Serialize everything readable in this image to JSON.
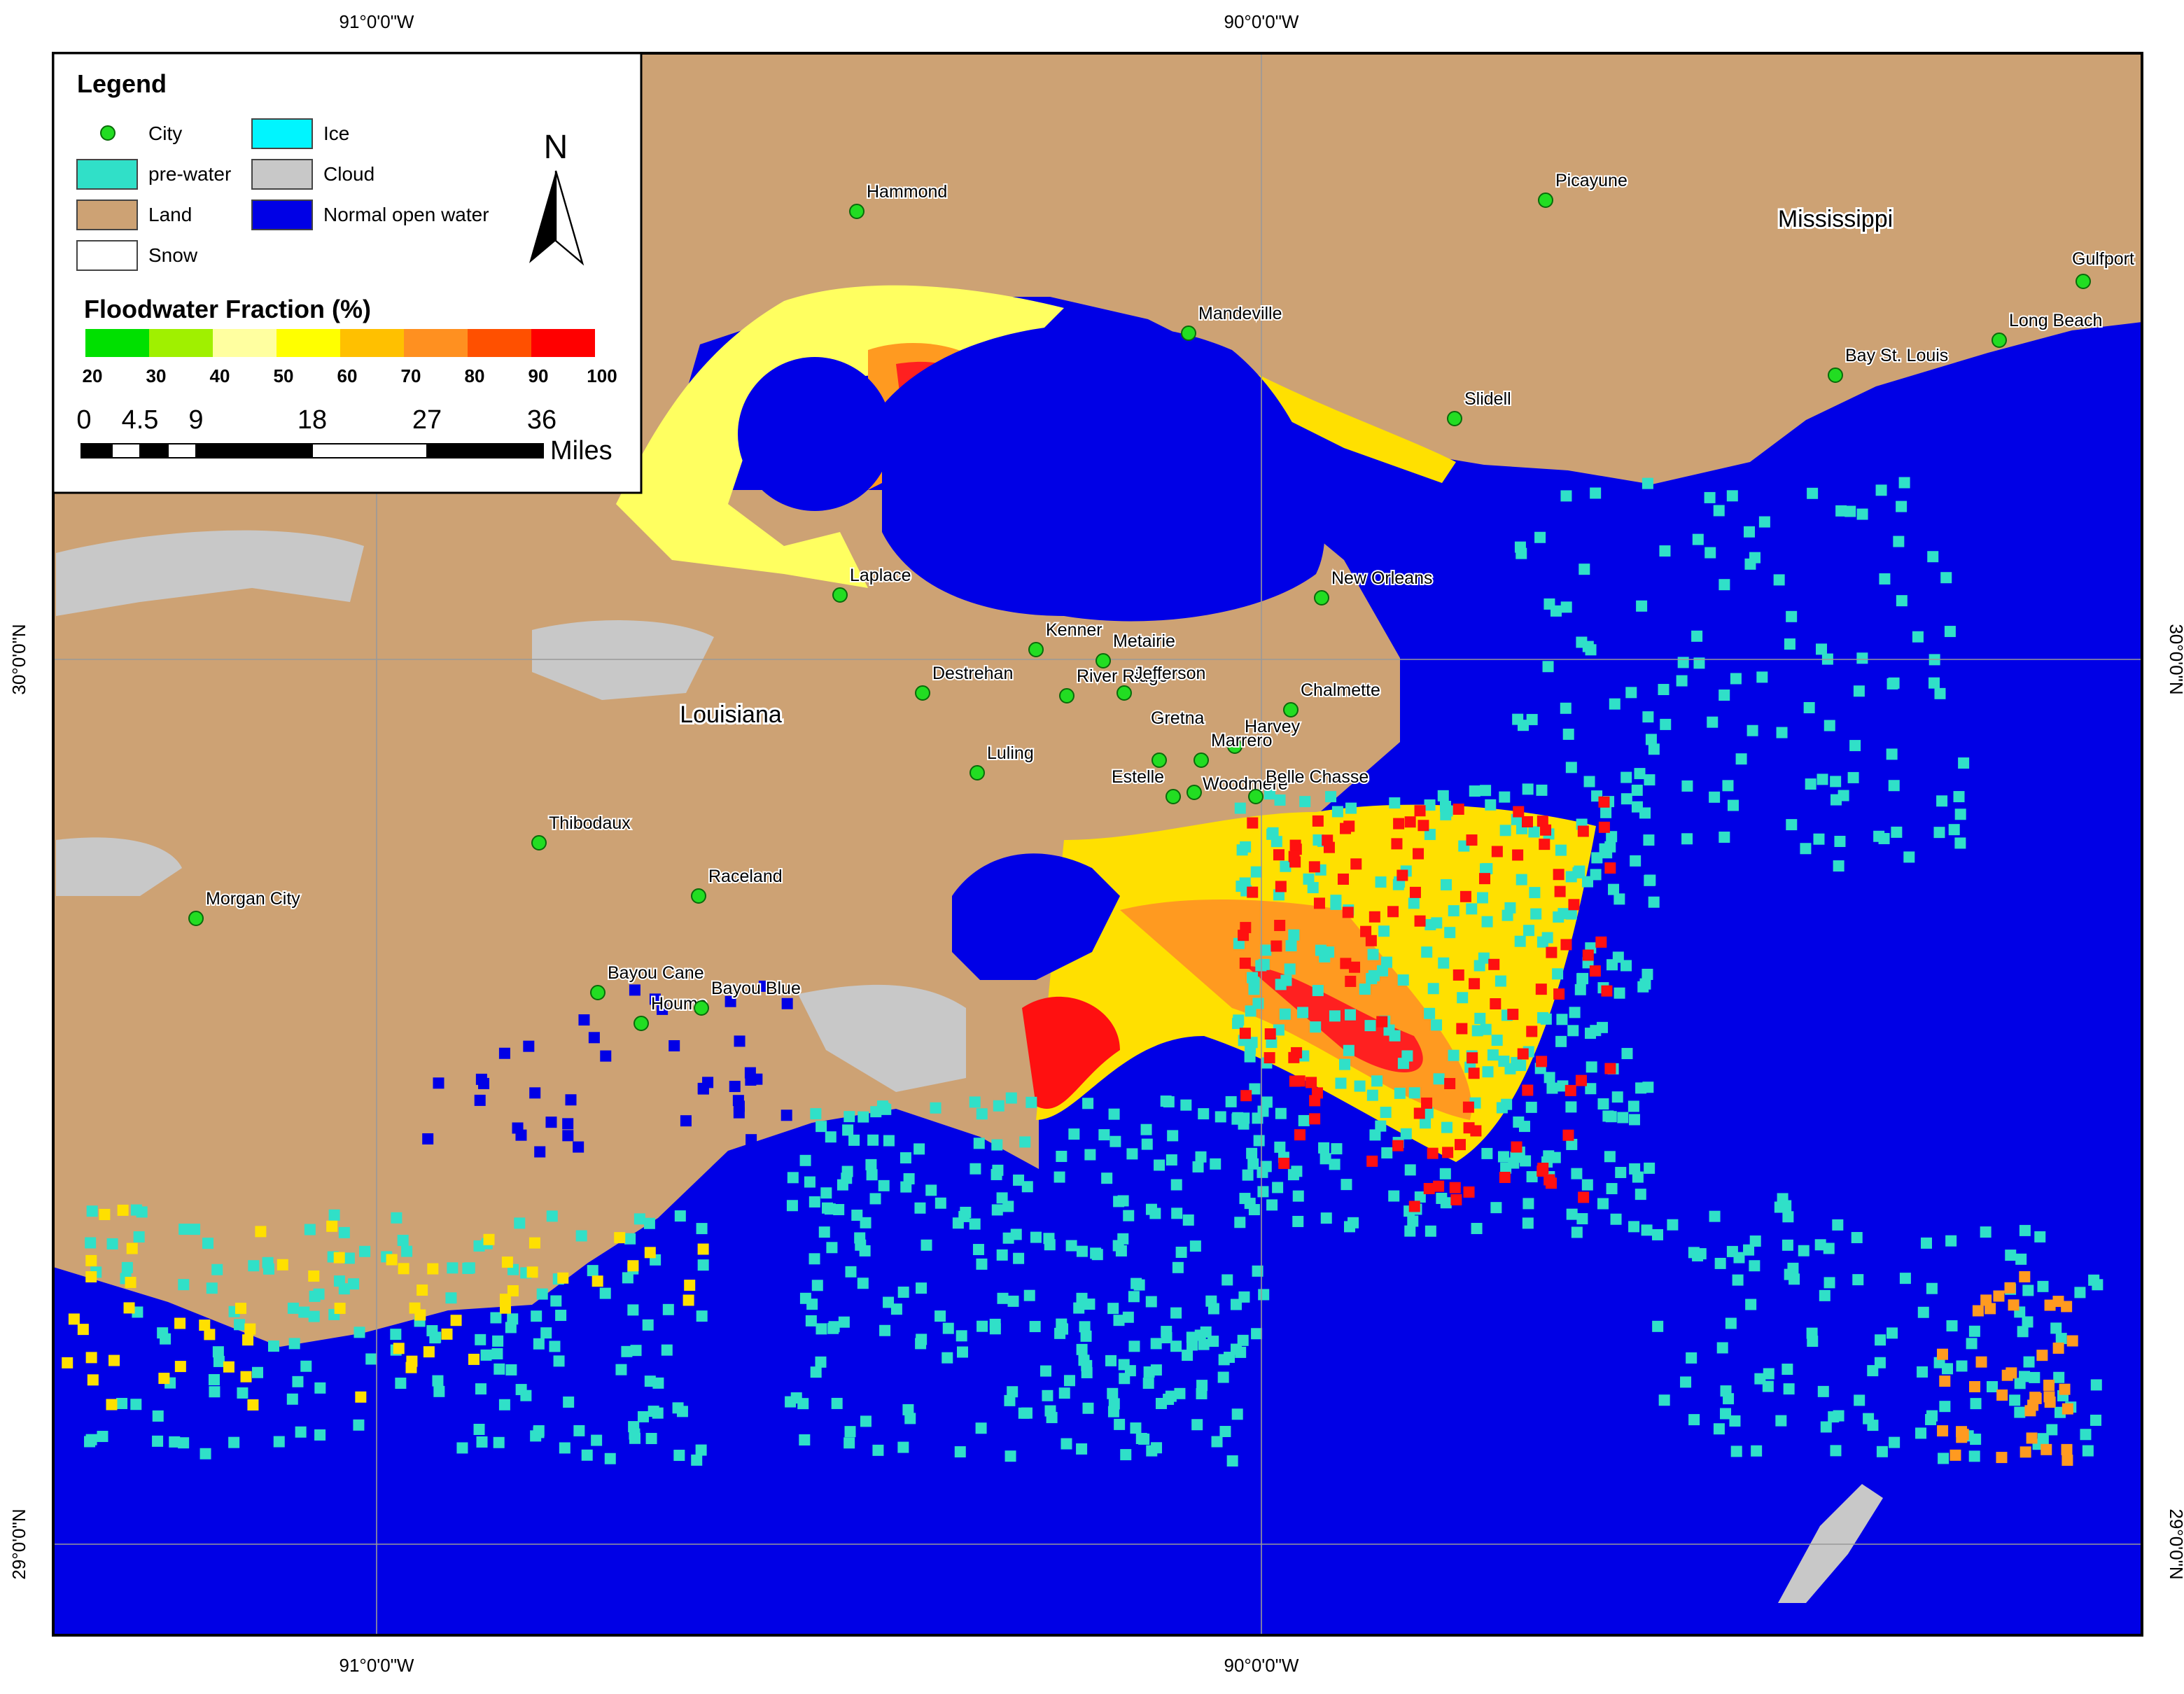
{
  "graticule": {
    "top": [
      "91°0'0\"W",
      "90°0'0\"W"
    ],
    "bottom": [
      "91°0'0\"W",
      "90°0'0\"W"
    ],
    "left": [
      "30°0'0\"N",
      "29°0'0\"N"
    ],
    "right": [
      "30°0'0\"N",
      "29°0'0\"N"
    ]
  },
  "legend": {
    "title": "Legend",
    "items": [
      "City",
      "pre-water",
      "Land",
      "Snow",
      "Ice",
      "Cloud",
      "Normal open water"
    ]
  },
  "flood_scale": {
    "title": "Floodwater Fraction (%)",
    "ticks": [
      "20",
      "30",
      "40",
      "50",
      "60",
      "70",
      "80",
      "90",
      "100"
    ]
  },
  "scale_bar": {
    "ticks": [
      "0",
      "4.5",
      "9",
      "18",
      "27",
      "36"
    ],
    "unit": "Miles"
  },
  "north": "N",
  "regions": [
    "Louisiana",
    "Mississippi"
  ],
  "cities": [
    "Hammond",
    "Picayune",
    "Mandeville",
    "Slidell",
    "Bay St. Louis",
    "Long Beach",
    "Gulfport",
    "Laplace",
    "New Orleans",
    "Kenner",
    "Metairie",
    "Destrehan",
    "River Ridge",
    "Jefferson",
    "Chalmette",
    "Gretna",
    "Harvey",
    "Marrero",
    "Estelle",
    "Woodmere",
    "Belle Chasse",
    "Luling",
    "Thibodaux",
    "Raceland",
    "Morgan City",
    "Bayou Cane",
    "Houma",
    "Bayou Blue"
  ]
}
